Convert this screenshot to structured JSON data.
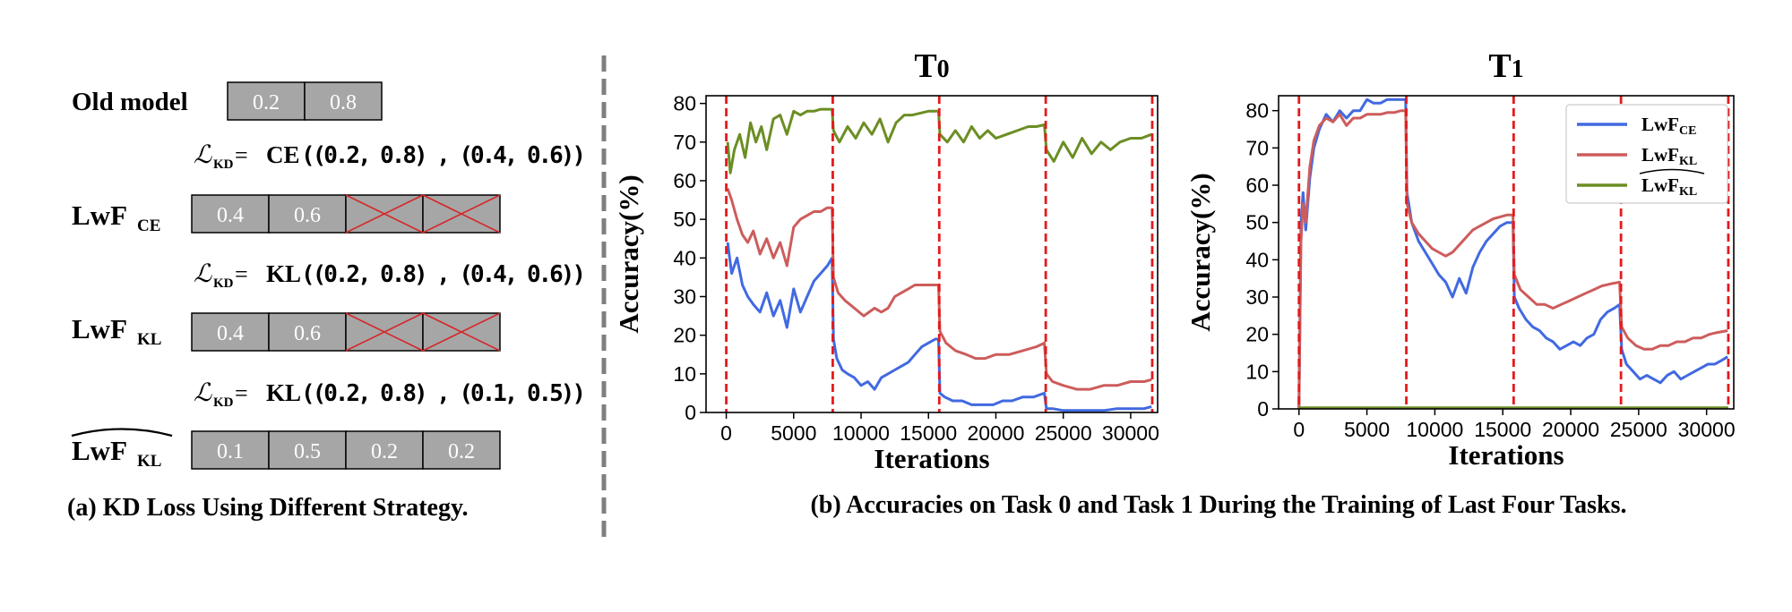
{
  "panel_a": {
    "caption": "(a) KD Loss Using Different Strategy.",
    "old_model": {
      "label": "Old model",
      "cells": [
        "0.2",
        "0.8"
      ]
    },
    "eq1": {
      "loss": "ℒ",
      "sub": "KD",
      "eq": " = ",
      "fn": "CE",
      "args": "((0.2,  0.8) , (0.4,  0.6))"
    },
    "row_ce": {
      "label_main": "LwF",
      "label_sub": "CE",
      "cells": [
        "0.4",
        "0.6",
        "",
        ""
      ],
      "crossed": [
        false,
        false,
        true,
        true
      ]
    },
    "eq2": {
      "loss": "ℒ",
      "sub": "KD",
      "eq": " = ",
      "fn": "KL",
      "args": "((0.2,  0.8) , (0.4,  0.6))"
    },
    "row_kl": {
      "label_main": "LwF",
      "label_sub": "KL",
      "cells": [
        "0.4",
        "0.6",
        "",
        ""
      ],
      "crossed": [
        false,
        false,
        true,
        true
      ]
    },
    "eq3": {
      "loss": "ℒ",
      "sub": "KD",
      "eq": " = ",
      "fn": "KL",
      "args": "((0.2,  0.8) , (0.1,  0.5))"
    },
    "row_klhat": {
      "label_main": "LwF",
      "label_sub": "KL",
      "cells": [
        "0.1",
        "0.5",
        "0.2",
        "0.2"
      ],
      "crossed": [
        false,
        false,
        false,
        false
      ]
    },
    "colors": {
      "cell_fill": "#a6a6a6",
      "cross": "#d62728"
    }
  },
  "panel_b": {
    "caption": "(b) Accuracies on Task 0 and Task 1 During the Training of Last Four Tasks."
  },
  "legend": [
    {
      "main": "LwF",
      "sub": "CE",
      "hat": false,
      "color": "#4169e1"
    },
    {
      "main": "LwF",
      "sub": "KL",
      "hat": false,
      "color": "#cd5c5c"
    },
    {
      "main": "LwF",
      "sub": "KL",
      "hat": true,
      "color": "#6b8e23"
    }
  ],
  "chart_data": [
    {
      "type": "line",
      "title": "T",
      "title_sub": "0",
      "xlabel": "Iterations",
      "ylabel": "Accuracy(%)",
      "xlim": [
        -1500,
        32000
      ],
      "ylim": [
        0,
        82
      ],
      "xticks": [
        0,
        5000,
        10000,
        15000,
        20000,
        25000,
        30000
      ],
      "yticks": [
        0,
        10,
        20,
        30,
        40,
        50,
        60,
        70,
        80
      ],
      "task_boundaries": [
        0,
        7900,
        15800,
        23700,
        31600
      ],
      "series": [
        {
          "name": "LwF_CE",
          "color": "#4169e1",
          "x": [
            100,
            400,
            800,
            1200,
            1600,
            2000,
            2500,
            3000,
            3500,
            4000,
            4500,
            5000,
            5500,
            6000,
            6500,
            7000,
            7500,
            7850,
            7950,
            8200,
            8600,
            9000,
            9500,
            10000,
            10500,
            11000,
            11500,
            12000,
            12500,
            13000,
            13500,
            14000,
            14500,
            15000,
            15500,
            15750,
            15850,
            16200,
            16800,
            17500,
            18200,
            19000,
            19800,
            20500,
            21200,
            22000,
            22800,
            23600,
            23750,
            24200,
            25000,
            26000,
            27000,
            28000,
            29000,
            30000,
            31000,
            31550
          ],
          "y": [
            44,
            36,
            40,
            33,
            30,
            28,
            26,
            31,
            25,
            29,
            22,
            32,
            26,
            30,
            34,
            36,
            38,
            40,
            19,
            14,
            11,
            10,
            9,
            7,
            8,
            6,
            9,
            10,
            11,
            12,
            13,
            15,
            17,
            18,
            19,
            19,
            5,
            4,
            3,
            3,
            2,
            2,
            2,
            3,
            3,
            4,
            4,
            5,
            1,
            1,
            0.5,
            0.5,
            0.5,
            0.5,
            1,
            1,
            1,
            1.5
          ]
        },
        {
          "name": "LwF_KL",
          "color": "#cd5c5c",
          "x": [
            100,
            400,
            800,
            1200,
            1600,
            2000,
            2500,
            3000,
            3500,
            4000,
            4500,
            5000,
            5500,
            6000,
            6500,
            7000,
            7500,
            7850,
            7950,
            8300,
            8800,
            9500,
            10200,
            11000,
            11500,
            12000,
            12500,
            13000,
            13500,
            14000,
            14500,
            15000,
            15500,
            15750,
            15850,
            16300,
            17000,
            17800,
            18500,
            19200,
            20000,
            21000,
            22000,
            23000,
            23600,
            23750,
            24200,
            25000,
            26000,
            27000,
            28000,
            29000,
            30000,
            31000,
            31550
          ],
          "y": [
            58,
            55,
            50,
            46,
            44,
            47,
            41,
            45,
            40,
            44,
            38,
            48,
            50,
            51,
            52,
            52,
            53,
            53,
            35,
            31,
            29,
            27,
            25,
            27,
            26,
            27,
            30,
            31,
            32,
            33,
            33,
            33,
            33,
            33,
            21,
            18,
            16,
            15,
            14,
            14,
            15,
            15,
            16,
            17,
            18,
            10,
            8,
            7,
            6,
            6,
            7,
            7,
            8,
            8,
            8.5
          ]
        },
        {
          "name": "LwF_KL_hat",
          "color": "#6b8e23",
          "x": [
            100,
            300,
            600,
            1000,
            1400,
            1800,
            2200,
            2600,
            3000,
            3500,
            4000,
            4500,
            5000,
            5500,
            6000,
            6500,
            7000,
            7500,
            7850,
            7950,
            8400,
            9000,
            9600,
            10200,
            10800,
            11400,
            12000,
            12600,
            13200,
            13800,
            14400,
            15000,
            15500,
            15750,
            15850,
            16400,
            17000,
            17600,
            18200,
            18800,
            19400,
            20000,
            20800,
            21600,
            22400,
            23000,
            23600,
            23750,
            24300,
            25000,
            25700,
            26400,
            27100,
            27800,
            28500,
            29200,
            30000,
            30800,
            31550
          ],
          "y": [
            70,
            62,
            68,
            72,
            66,
            75,
            70,
            74,
            68,
            76,
            77,
            72,
            78,
            77,
            78,
            78,
            78.5,
            78.5,
            78.5,
            73,
            70,
            74,
            71,
            75,
            72,
            76,
            70,
            75,
            77,
            77,
            77.5,
            78,
            78,
            78,
            72,
            70,
            73,
            70,
            74,
            71,
            73,
            71,
            72,
            73,
            74,
            74,
            74.5,
            68,
            65,
            70,
            66,
            71,
            67,
            70,
            68,
            70,
            71,
            71,
            72
          ]
        }
      ]
    },
    {
      "type": "line",
      "title": "T",
      "title_sub": "1",
      "xlabel": "Iterations",
      "ylabel": "Accuracy(%)",
      "xlim": [
        -1500,
        32000
      ],
      "ylim": [
        0,
        84
      ],
      "xticks": [
        0,
        5000,
        10000,
        15000,
        20000,
        25000,
        30000
      ],
      "yticks": [
        0,
        10,
        20,
        30,
        40,
        50,
        60,
        70,
        80
      ],
      "task_boundaries": [
        0,
        7900,
        15800,
        23700,
        31600
      ],
      "legend_position": "top-right",
      "series": [
        {
          "name": "LwF_CE",
          "color": "#4169e1",
          "x": [
            0,
            150,
            300,
            500,
            800,
            1100,
            1500,
            2000,
            2500,
            3000,
            3500,
            4000,
            4500,
            5000,
            5500,
            6000,
            6500,
            7000,
            7500,
            7850,
            7950,
            8300,
            8800,
            9300,
            9800,
            10300,
            10800,
            11300,
            11800,
            12300,
            12800,
            13300,
            13800,
            14300,
            14800,
            15300,
            15750,
            15850,
            16200,
            16700,
            17200,
            17700,
            18200,
            18700,
            19200,
            19700,
            20200,
            20700,
            21200,
            21700,
            22200,
            22700,
            23200,
            23600,
            23750,
            24100,
            24600,
            25100,
            25600,
            26100,
            26600,
            27100,
            27600,
            28100,
            28600,
            29100,
            29600,
            30100,
            30600,
            31100,
            31550
          ],
          "y": [
            0,
            50,
            58,
            48,
            62,
            70,
            75,
            79,
            77,
            80,
            78,
            80,
            80,
            83,
            82,
            82,
            83,
            83,
            83,
            83,
            58,
            50,
            45,
            42,
            39,
            36,
            34,
            30,
            35,
            31,
            38,
            42,
            45,
            47,
            49,
            50,
            50,
            30,
            27,
            24,
            22,
            21,
            19,
            18,
            16,
            17,
            18,
            17,
            19,
            20,
            24,
            26,
            27,
            28,
            16,
            12,
            10,
            8,
            9,
            8,
            7,
            9,
            10,
            8,
            9,
            10,
            11,
            12,
            12,
            13,
            14
          ]
        },
        {
          "name": "LwF_KL",
          "color": "#cd5c5c",
          "x": [
            0,
            150,
            300,
            500,
            800,
            1100,
            1500,
            2000,
            2500,
            3000,
            3500,
            4000,
            4500,
            5000,
            5500,
            6000,
            6500,
            7000,
            7500,
            7850,
            7950,
            8300,
            8800,
            9300,
            9800,
            10300,
            10800,
            11300,
            11800,
            12300,
            12800,
            13300,
            13800,
            14300,
            14800,
            15300,
            15750,
            15850,
            16300,
            16900,
            17500,
            18100,
            18700,
            19300,
            19900,
            20500,
            21100,
            21700,
            22300,
            22900,
            23600,
            23750,
            24200,
            24800,
            25400,
            26000,
            26600,
            27200,
            27800,
            28400,
            29000,
            29600,
            30200,
            30800,
            31550
          ],
          "y": [
            0,
            45,
            55,
            50,
            65,
            72,
            76,
            78,
            77,
            79,
            76,
            78,
            78,
            79,
            79,
            79,
            79.5,
            79.5,
            80,
            80,
            55,
            50,
            47,
            45,
            43,
            42,
            41,
            42,
            44,
            46,
            48,
            49,
            50,
            51,
            51.5,
            52,
            52,
            36,
            32,
            30,
            28,
            28,
            27,
            28,
            29,
            30,
            31,
            32,
            33,
            33.5,
            34,
            22,
            19,
            17,
            16,
            16,
            17,
            17,
            18,
            18,
            19,
            19,
            20,
            20.5,
            21
          ]
        },
        {
          "name": "LwF_KL_hat",
          "color": "#6b8e23",
          "x": [
            0,
            31600
          ],
          "y": [
            0.3,
            0.3
          ]
        }
      ]
    }
  ]
}
